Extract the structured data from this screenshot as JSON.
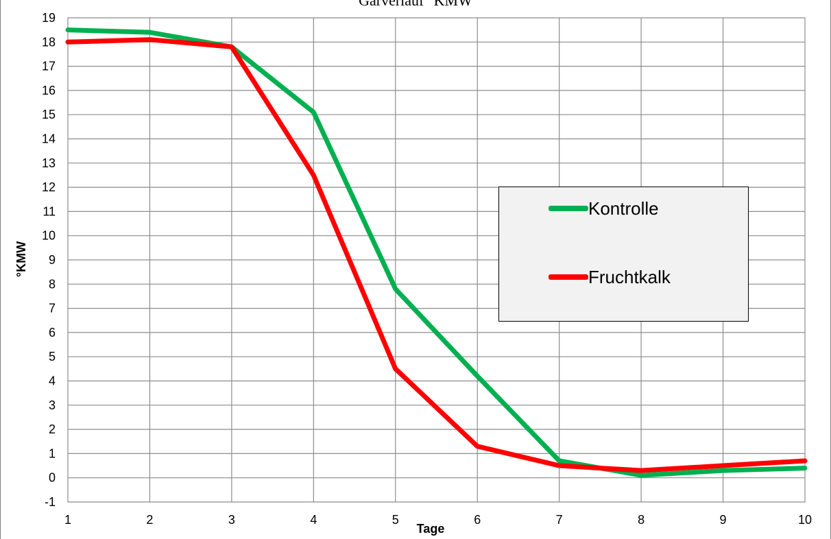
{
  "chart_data": {
    "type": "line",
    "title": "Gärverlauf °KMW",
    "xlabel": "Tage",
    "ylabel": "°KMW",
    "x": [
      1,
      2,
      3,
      4,
      5,
      6,
      7,
      8,
      9,
      10
    ],
    "xlim": [
      1,
      10
    ],
    "ylim": [
      -1,
      19
    ],
    "y_ticks": [
      -1,
      0,
      1,
      2,
      3,
      4,
      5,
      6,
      7,
      8,
      9,
      10,
      11,
      12,
      13,
      14,
      15,
      16,
      17,
      18,
      19
    ],
    "grid": true,
    "legend_position": "right-middle",
    "series": [
      {
        "name": "Kontrolle",
        "color": "#00b050",
        "values": [
          18.5,
          18.4,
          17.8,
          15.1,
          7.8,
          4.2,
          0.7,
          0.1,
          0.3,
          0.4
        ]
      },
      {
        "name": "Fruchtkalk",
        "color": "#ff0000",
        "values": [
          18.0,
          18.1,
          17.8,
          12.5,
          4.5,
          1.3,
          0.5,
          0.3,
          0.5,
          0.7
        ]
      }
    ]
  }
}
